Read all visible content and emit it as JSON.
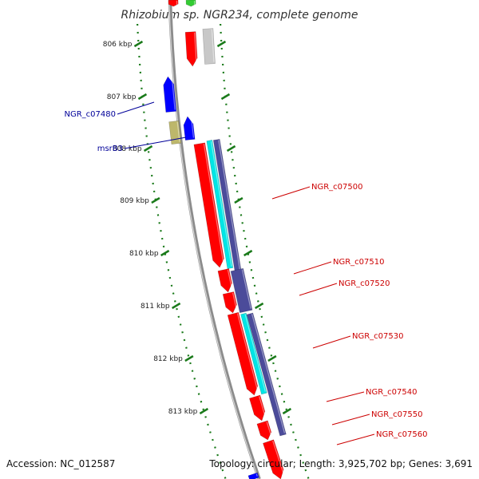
{
  "title": "Rhizobium sp. NGR234, complete genome",
  "scale_ticks": [
    {
      "label": "806 kbp"
    },
    {
      "label": "807 kbp"
    },
    {
      "label": "808 kbp"
    },
    {
      "label": "809 kbp"
    },
    {
      "label": "810 kbp"
    },
    {
      "label": "811 kbp"
    },
    {
      "label": "812 kbp"
    },
    {
      "label": "813 kbp"
    }
  ],
  "left_genes": [
    {
      "label": "NGR_c07480",
      "color": "#000099"
    },
    {
      "label": "msrB3",
      "color": "#000099"
    }
  ],
  "right_genes": [
    {
      "label": "NGR_c07500",
      "color": "#cc0000"
    },
    {
      "label": "NGR_c07510",
      "color": "#cc0000"
    },
    {
      "label": "NGR_c07520",
      "color": "#cc0000"
    },
    {
      "label": "NGR_c07530",
      "color": "#cc0000"
    },
    {
      "label": "NGR_c07540",
      "color": "#cc0000"
    },
    {
      "label": "NGR_c07550",
      "color": "#cc0000"
    },
    {
      "label": "NGR_c07560",
      "color": "#cc0000"
    }
  ],
  "colors": {
    "cds_red": "#ff0000",
    "cds_blue": "#0000ff",
    "cds_khaki": "#bdb76b",
    "cds_gray": "#c8c8c8",
    "cds_green": "#33cc33",
    "cyan": "#00e5e5",
    "navy": "#4b4b9a",
    "backbone": "#8c8c8c",
    "tick_green": "#1a7a1a"
  },
  "footer": {
    "accession": "Accession: NC_012587",
    "summary": "Topology: circular; Length: 3,925,702 bp; Genes: 3,691"
  }
}
